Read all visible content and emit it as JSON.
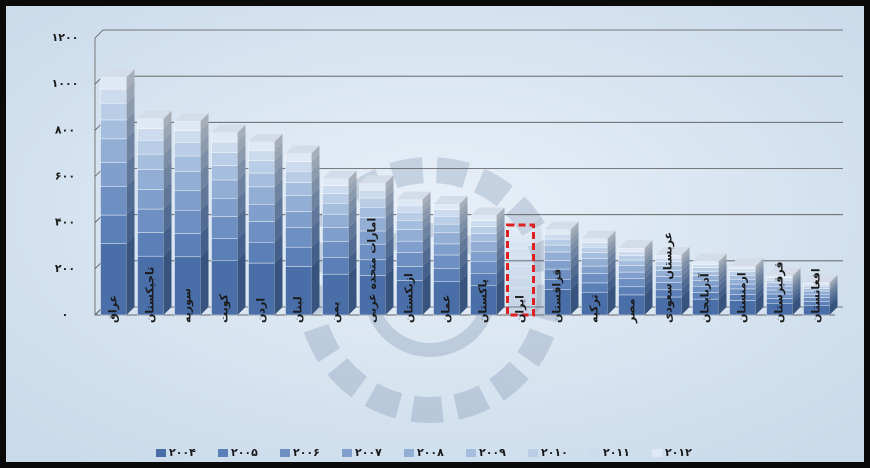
{
  "chart_data": {
    "type": "bar",
    "stacked": true,
    "categories": [
      "عراق",
      "تاجیکستان",
      "سوریه",
      "کویت",
      "اردن",
      "لبنان",
      "یمن",
      "امارات متحده عربی",
      "ازبکستان",
      "عمان",
      "پاکستان",
      "ایران",
      "قزاقستان",
      "ترکیه",
      "مصر",
      "عربستان سعودی",
      "آذربایجان",
      "ارمنستان",
      "قرقیزستان",
      "افغانستان"
    ],
    "series": [
      {
        "name": "۲۰۰۴",
        "color": "#4a6fa8",
        "values": [
          309,
          255,
          252,
          237,
          225,
          210,
          177,
          171,
          150,
          144,
          129,
          117,
          111,
          99,
          87,
          78,
          69,
          63,
          51,
          42
        ]
      },
      {
        "name": "۲۰۰۵",
        "color": "#5b80b8",
        "values": [
          124,
          102,
          101,
          95,
          90,
          84,
          71,
          68,
          60,
          58,
          52,
          47,
          44,
          40,
          35,
          31,
          28,
          25,
          20,
          17
        ]
      },
      {
        "name": "۲۰۰۶",
        "color": "#6d8fc2",
        "values": [
          124,
          102,
          101,
          95,
          90,
          84,
          71,
          68,
          60,
          58,
          52,
          47,
          44,
          40,
          35,
          31,
          28,
          25,
          20,
          17
        ]
      },
      {
        "name": "۲۰۰۷",
        "color": "#809fcc",
        "values": [
          103,
          85,
          84,
          79,
          75,
          70,
          59,
          57,
          50,
          48,
          43,
          39,
          37,
          33,
          29,
          26,
          23,
          21,
          17,
          14
        ]
      },
      {
        "name": "۲۰۰۸",
        "color": "#93aed5",
        "values": [
          103,
          85,
          84,
          79,
          75,
          70,
          59,
          57,
          50,
          48,
          43,
          39,
          37,
          33,
          29,
          26,
          23,
          21,
          17,
          14
        ]
      },
      {
        "name": "۲۰۰۹",
        "color": "#a6bede",
        "values": [
          82,
          68,
          67,
          63,
          60,
          56,
          47,
          46,
          40,
          38,
          34,
          31,
          30,
          26,
          23,
          21,
          18,
          17,
          14,
          11
        ]
      },
      {
        "name": "۲۰۱۰",
        "color": "#b9cde6",
        "values": [
          72,
          60,
          59,
          55,
          53,
          49,
          41,
          40,
          35,
          34,
          30,
          27,
          26,
          23,
          20,
          18,
          16,
          15,
          12,
          10
        ]
      },
      {
        "name": "۲۰۱۱",
        "color": "#ccdcee",
        "values": [
          62,
          51,
          50,
          47,
          45,
          42,
          35,
          34,
          30,
          29,
          26,
          23,
          22,
          20,
          17,
          16,
          14,
          13,
          10,
          8
        ]
      },
      {
        "name": "۲۰۱۲",
        "color": "#dfe8f5",
        "values": [
          51,
          42,
          42,
          40,
          37,
          35,
          30,
          29,
          25,
          24,
          22,
          20,
          19,
          17,
          15,
          13,
          12,
          11,
          9,
          7
        ]
      }
    ],
    "highlight": {
      "category": 11,
      "color": "#e02020"
    },
    "ylim": [
      0,
      1200
    ],
    "yticks": [
      {
        "value": 0,
        "label": "۰"
      },
      {
        "value": 200,
        "label": "۲۰۰"
      },
      {
        "value": 400,
        "label": "۴۰۰"
      },
      {
        "value": 600,
        "label": "۶۰۰"
      },
      {
        "value": 800,
        "label": "۸۰۰"
      },
      {
        "value": 1000,
        "label": "۱۰۰۰"
      },
      {
        "value": 1200,
        "label": "۱۲۰۰"
      }
    ],
    "grid": true,
    "legend": "bottom"
  }
}
